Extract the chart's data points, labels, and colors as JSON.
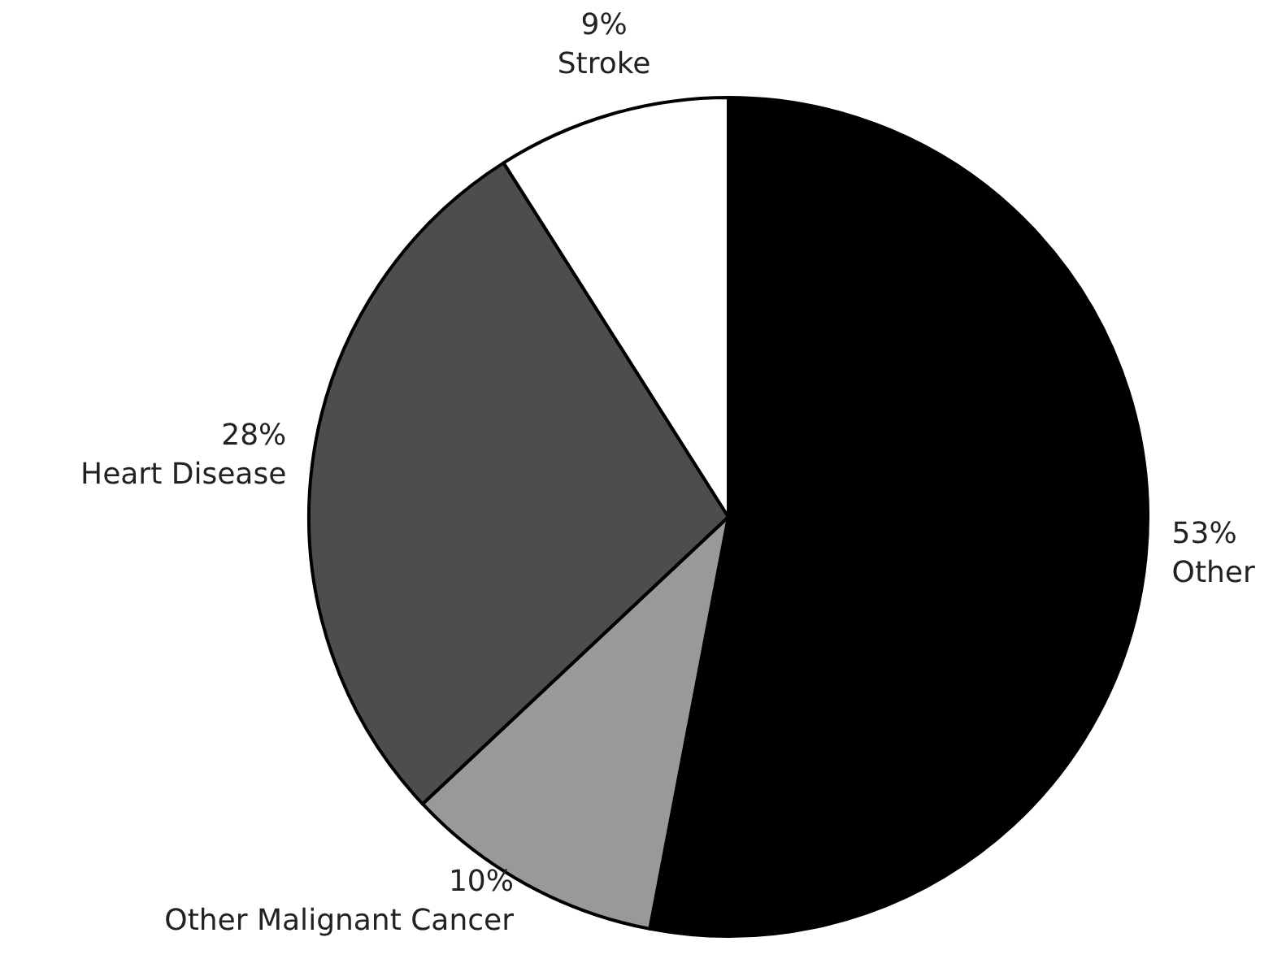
{
  "chart_data": {
    "type": "pie",
    "categories": [
      "Other",
      "Other Malignant Cancer",
      "Heart Disease",
      "Stroke"
    ],
    "values": [
      53,
      10,
      28,
      9
    ],
    "colors": [
      "#000000",
      "#999999",
      "#4d4d4d",
      "#ffffff"
    ],
    "value_labels": [
      "53%",
      "10%",
      "28%",
      "9%"
    ]
  }
}
